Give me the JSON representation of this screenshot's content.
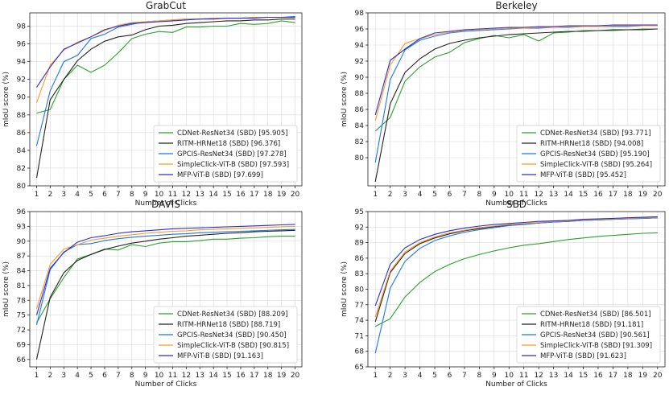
{
  "chart_data": [
    {
      "type": "line",
      "title": "GrabCut",
      "xlabel": "Number of Clicks",
      "ylabel": "mIoU score (%)",
      "x": [
        1,
        2,
        3,
        4,
        5,
        6,
        7,
        8,
        9,
        10,
        11,
        12,
        13,
        14,
        15,
        16,
        17,
        18,
        19,
        20
      ],
      "ylim": [
        80,
        99.5
      ],
      "yticks": [
        80,
        82,
        84,
        86,
        88,
        90,
        92,
        94,
        96,
        98
      ],
      "series": [
        {
          "name": "CDNet-ResNet34 (SBD) [95.905]",
          "color": "#2ca02c",
          "values": [
            88.2,
            88.6,
            92.0,
            93.6,
            92.8,
            93.6,
            95.0,
            96.6,
            97.1,
            97.4,
            97.3,
            97.9,
            97.9,
            98.0,
            98.0,
            98.3,
            98.2,
            98.3,
            98.6,
            98.4
          ]
        },
        {
          "name": "RITM-HRNet18 (SBD) [96.376]",
          "color": "#222222",
          "values": [
            80.9,
            89.7,
            92.0,
            94.1,
            95.4,
            96.3,
            96.8,
            97.0,
            97.6,
            98.0,
            98.1,
            98.3,
            98.4,
            98.5,
            98.6,
            98.6,
            98.7,
            98.7,
            98.8,
            98.8
          ]
        },
        {
          "name": "GPCIS-ResNet34 (SBD) [97.278]",
          "color": "#1f77e4",
          "values": [
            84.5,
            90.7,
            94.0,
            94.7,
            96.6,
            97.1,
            97.9,
            98.2,
            98.5,
            98.6,
            98.7,
            98.8,
            98.8,
            98.9,
            98.9,
            98.9,
            99.0,
            99.0,
            99.0,
            99.1
          ]
        },
        {
          "name": "SimpleClick-ViT-B (SBD) [97.593]",
          "color": "#ff9a1f",
          "values": [
            89.4,
            93.6,
            95.3,
            96.2,
            96.8,
            97.5,
            98.1,
            98.4,
            98.5,
            98.6,
            98.7,
            98.8,
            98.8,
            98.9,
            98.9,
            98.9,
            99.0,
            99.0,
            99.0,
            99.0
          ]
        },
        {
          "name": "MFP-ViT-B (SBD) [97.699]",
          "color": "#2b2bdb",
          "values": [
            91.1,
            93.4,
            95.4,
            96.1,
            96.8,
            97.6,
            98.0,
            98.3,
            98.4,
            98.5,
            98.6,
            98.7,
            98.8,
            98.8,
            98.9,
            98.9,
            98.9,
            99.0,
            99.0,
            99.0
          ]
        }
      ]
    },
    {
      "type": "line",
      "title": "Berkeley",
      "xlabel": "Number of Clicks",
      "ylabel": "mIoU score (%)",
      "x": [
        1,
        2,
        3,
        4,
        5,
        6,
        7,
        8,
        9,
        10,
        11,
        12,
        13,
        14,
        15,
        16,
        17,
        18,
        19,
        20
      ],
      "ylim": [
        76.5,
        98
      ],
      "yticks": [
        80,
        82,
        84,
        86,
        88,
        90,
        92,
        94,
        96,
        98
      ],
      "series": [
        {
          "name": "CDNet-ResNet34 (SBD) [93.771]",
          "color": "#2ca02c",
          "values": [
            83.3,
            85.0,
            89.5,
            91.3,
            92.5,
            93.1,
            94.3,
            94.8,
            95.2,
            94.9,
            95.3,
            94.5,
            95.5,
            95.6,
            95.8,
            95.8,
            95.8,
            95.9,
            96.0,
            96.0
          ]
        },
        {
          "name": "RITM-HRNet18 (SBD) [94.008]",
          "color": "#222222",
          "values": [
            77.0,
            86.7,
            90.6,
            92.3,
            93.5,
            94.2,
            94.6,
            94.9,
            95.1,
            95.3,
            95.4,
            95.5,
            95.6,
            95.7,
            95.7,
            95.8,
            95.9,
            95.9,
            95.9,
            96.0
          ]
        },
        {
          "name": "GPCIS-ResNet34 (SBD) [95.190]",
          "color": "#1f77e4",
          "values": [
            79.4,
            89.7,
            93.4,
            94.6,
            95.1,
            95.5,
            95.7,
            95.8,
            95.9,
            96.0,
            96.1,
            96.1,
            96.2,
            96.2,
            96.3,
            96.3,
            96.3,
            96.3,
            96.4,
            96.4
          ]
        },
        {
          "name": "SimpleClick-ViT-B (SBD) [95.264]",
          "color": "#ff9a1f",
          "values": [
            84.6,
            91.5,
            94.2,
            94.8,
            95.3,
            95.6,
            95.8,
            95.9,
            96.0,
            96.1,
            96.1,
            96.2,
            96.2,
            96.3,
            96.3,
            96.3,
            96.4,
            96.4,
            96.4,
            96.4
          ]
        },
        {
          "name": "MFP-ViT-B (SBD) [95.452]",
          "color": "#2b2bdb",
          "values": [
            85.3,
            92.1,
            93.5,
            94.8,
            95.5,
            95.7,
            95.9,
            96.0,
            96.1,
            96.2,
            96.2,
            96.3,
            96.3,
            96.4,
            96.4,
            96.4,
            96.5,
            96.5,
            96.5,
            96.5
          ]
        }
      ]
    },
    {
      "type": "line",
      "title": "DAVIS",
      "xlabel": "Number of Clicks",
      "ylabel": "mIoU score (%)",
      "x": [
        1,
        2,
        3,
        4,
        5,
        6,
        7,
        8,
        9,
        10,
        11,
        12,
        13,
        14,
        15,
        16,
        17,
        18,
        19,
        20
      ],
      "ylim": [
        64.5,
        96
      ],
      "yticks": [
        66,
        69,
        72,
        75,
        78,
        81,
        84,
        87,
        90,
        93,
        96
      ],
      "series": [
        {
          "name": "CDNet-ResNet34 (SBD) [88.209]",
          "color": "#2ca02c",
          "values": [
            73.4,
            78.3,
            82.6,
            86.4,
            87.3,
            88.4,
            88.2,
            89.3,
            88.9,
            89.6,
            89.9,
            89.9,
            90.1,
            90.4,
            90.4,
            90.6,
            90.7,
            90.9,
            91.0,
            91.0
          ]
        },
        {
          "name": "RITM-HRNet18 (SBD) [88.719]",
          "color": "#222222",
          "values": [
            66.0,
            78.6,
            83.6,
            86.1,
            87.3,
            88.3,
            89.0,
            89.6,
            90.0,
            90.4,
            90.7,
            91.0,
            91.2,
            91.4,
            91.6,
            91.7,
            91.9,
            92.0,
            92.1,
            92.2
          ]
        },
        {
          "name": "GPCIS-ResNet34 (SBD) [90.450]",
          "color": "#1f77e4",
          "values": [
            73.0,
            84.2,
            87.8,
            89.3,
            89.5,
            90.1,
            90.5,
            90.8,
            91.0,
            91.2,
            91.4,
            91.5,
            91.7,
            91.8,
            91.9,
            92.0,
            92.1,
            92.2,
            92.3,
            92.4
          ]
        },
        {
          "name": "SimpleClick-ViT-B (SBD) [90.815]",
          "color": "#ff9a1f",
          "values": [
            76.3,
            85.3,
            88.4,
            89.3,
            90.2,
            90.6,
            91.0,
            91.3,
            91.6,
            91.8,
            92.0,
            92.1,
            92.3,
            92.4,
            92.5,
            92.6,
            92.7,
            92.8,
            92.9,
            93.0
          ]
        },
        {
          "name": "MFP-ViT-B (SBD) [91.163]",
          "color": "#2b2bdb",
          "values": [
            75.0,
            84.5,
            87.7,
            89.8,
            90.7,
            91.1,
            91.6,
            91.9,
            92.1,
            92.3,
            92.5,
            92.6,
            92.7,
            92.8,
            92.9,
            93.0,
            93.1,
            93.2,
            93.3,
            93.4
          ]
        }
      ]
    },
    {
      "type": "line",
      "title": "SBD",
      "xlabel": "Number of Clicks",
      "ylabel": "mIoU score (%)",
      "x": [
        1,
        2,
        3,
        4,
        5,
        6,
        7,
        8,
        9,
        10,
        11,
        12,
        13,
        14,
        15,
        16,
        17,
        18,
        19,
        20
      ],
      "ylim": [
        65,
        95
      ],
      "yticks": [
        65,
        68,
        71,
        74,
        77,
        80,
        83,
        86,
        89,
        92,
        95
      ],
      "series": [
        {
          "name": "CDNet-ResNet34 (SBD) [86.501]",
          "color": "#2ca02c",
          "values": [
            72.8,
            74.3,
            78.5,
            81.3,
            83.4,
            84.8,
            85.9,
            86.7,
            87.4,
            88.0,
            88.5,
            88.8,
            89.2,
            89.6,
            89.9,
            90.2,
            90.4,
            90.6,
            90.8,
            90.9
          ]
        },
        {
          "name": "RITM-HRNet18 (SBD) [91.181]",
          "color": "#222222",
          "values": [
            73.7,
            83.2,
            86.9,
            88.8,
            89.9,
            90.7,
            91.3,
            91.7,
            92.1,
            92.4,
            92.6,
            92.8,
            93.0,
            93.1,
            93.3,
            93.4,
            93.5,
            93.6,
            93.7,
            93.8
          ]
        },
        {
          "name": "GPCIS-ResNet34 (SBD) [90.561]",
          "color": "#1f77e4",
          "values": [
            67.6,
            80.2,
            85.4,
            87.9,
            89.4,
            90.3,
            91.0,
            91.5,
            91.9,
            92.3,
            92.5,
            92.8,
            93.0,
            93.1,
            93.3,
            93.4,
            93.5,
            93.6,
            93.7,
            93.8
          ]
        },
        {
          "name": "SimpleClick-ViT-B (SBD) [91.309]",
          "color": "#ff9a1f",
          "values": [
            74.6,
            83.5,
            87.2,
            89.0,
            90.1,
            90.9,
            91.4,
            91.9,
            92.2,
            92.5,
            92.7,
            92.9,
            93.1,
            93.2,
            93.4,
            93.5,
            93.6,
            93.7,
            93.8,
            93.9
          ]
        },
        {
          "name": "MFP-ViT-B (SBD) [91.623]",
          "color": "#2b2bdb",
          "values": [
            76.8,
            84.8,
            88.0,
            89.6,
            90.6,
            91.3,
            91.8,
            92.2,
            92.5,
            92.7,
            92.9,
            93.1,
            93.2,
            93.3,
            93.5,
            93.6,
            93.7,
            93.8,
            93.9,
            94.0
          ]
        }
      ]
    }
  ]
}
